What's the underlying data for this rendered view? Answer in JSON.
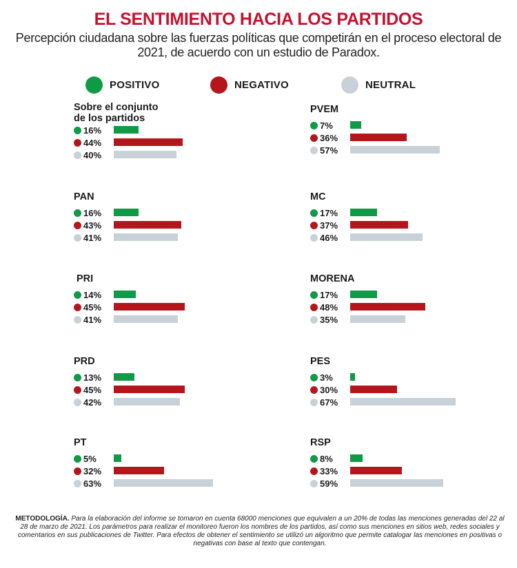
{
  "title": "EL SENTIMIENTO HACIA LOS PARTIDOS",
  "subtitle_line1": "Percepción ciudadana sobre las fuerzas políticas que competirán en el proceso electoral de",
  "subtitle_line2": "2021, de acuerdo con un estudio de Paradox.",
  "colors": {
    "positivo": "#0f9a46",
    "negativo": "#b4161b",
    "neutral": "#c9d1d8"
  },
  "methodology_label": "METODOLOGÍA.",
  "methodology_text": "Para la elaboración del informe se tomaron en cuenta 68000 menciones que equivalen a un 20% de todas las menciones generadas del 22 al 28 de marzo de 2021. Los parámetros para realizar el monitoreo fueron los nombres de los partidos, así como sus menciones en sitios web, redes sociales y comentarios en sus publicaciones de Twitter. Para efectos de obtener el sentimiento se utilizó un algoritmo que permite catalogar las menciones en positivas o negativas con base al texto que contengan.",
  "chart_data": {
    "type": "bar",
    "title": "EL SENTIMIENTO HACIA LOS PARTIDOS",
    "legend": [
      "POSITIVO",
      "NEGATIVO",
      "NEUTRAL"
    ],
    "unit": "%",
    "panels": [
      {
        "name": "Sobre el conjunto de los partidos",
        "name_lines": [
          "Sobre el conjunto",
          "de los partidos"
        ],
        "values": [
          16,
          44,
          40
        ],
        "labels": [
          "16%",
          "44%",
          "40%"
        ]
      },
      {
        "name": "PVEM",
        "name_lines": [
          "PVEM"
        ],
        "values": [
          7,
          36,
          57
        ],
        "labels": [
          "7%",
          "36%",
          "57%"
        ]
      },
      {
        "name": "PAN",
        "name_lines": [
          "PAN"
        ],
        "values": [
          16,
          43,
          41
        ],
        "labels": [
          "16%",
          "43%",
          "41%"
        ]
      },
      {
        "name": "MC",
        "name_lines": [
          "MC"
        ],
        "values": [
          17,
          37,
          46
        ],
        "labels": [
          "17%",
          "37%",
          "46%"
        ]
      },
      {
        "name": "PRI",
        "name_lines": [
          "PRI"
        ],
        "values": [
          14,
          45,
          41
        ],
        "labels": [
          "14%",
          "45%",
          "41%"
        ]
      },
      {
        "name": "MORENA",
        "name_lines": [
          "MORENA"
        ],
        "values": [
          17,
          48,
          35
        ],
        "labels": [
          "17%",
          "48%",
          "35%"
        ]
      },
      {
        "name": "PRD",
        "name_lines": [
          "PRD"
        ],
        "values": [
          13,
          45,
          42
        ],
        "labels": [
          "13%",
          "45%",
          "42%"
        ]
      },
      {
        "name": "PES",
        "name_lines": [
          "PES"
        ],
        "values": [
          3,
          30,
          67
        ],
        "labels": [
          "3%",
          "30%",
          "67%"
        ]
      },
      {
        "name": "PT",
        "name_lines": [
          "PT"
        ],
        "values": [
          5,
          32,
          63
        ],
        "labels": [
          "5%",
          "32%",
          "63%"
        ]
      },
      {
        "name": "RSP",
        "name_lines": [
          "RSP"
        ],
        "values": [
          8,
          33,
          59
        ],
        "labels": [
          "8%",
          "33%",
          "59%"
        ]
      }
    ]
  }
}
